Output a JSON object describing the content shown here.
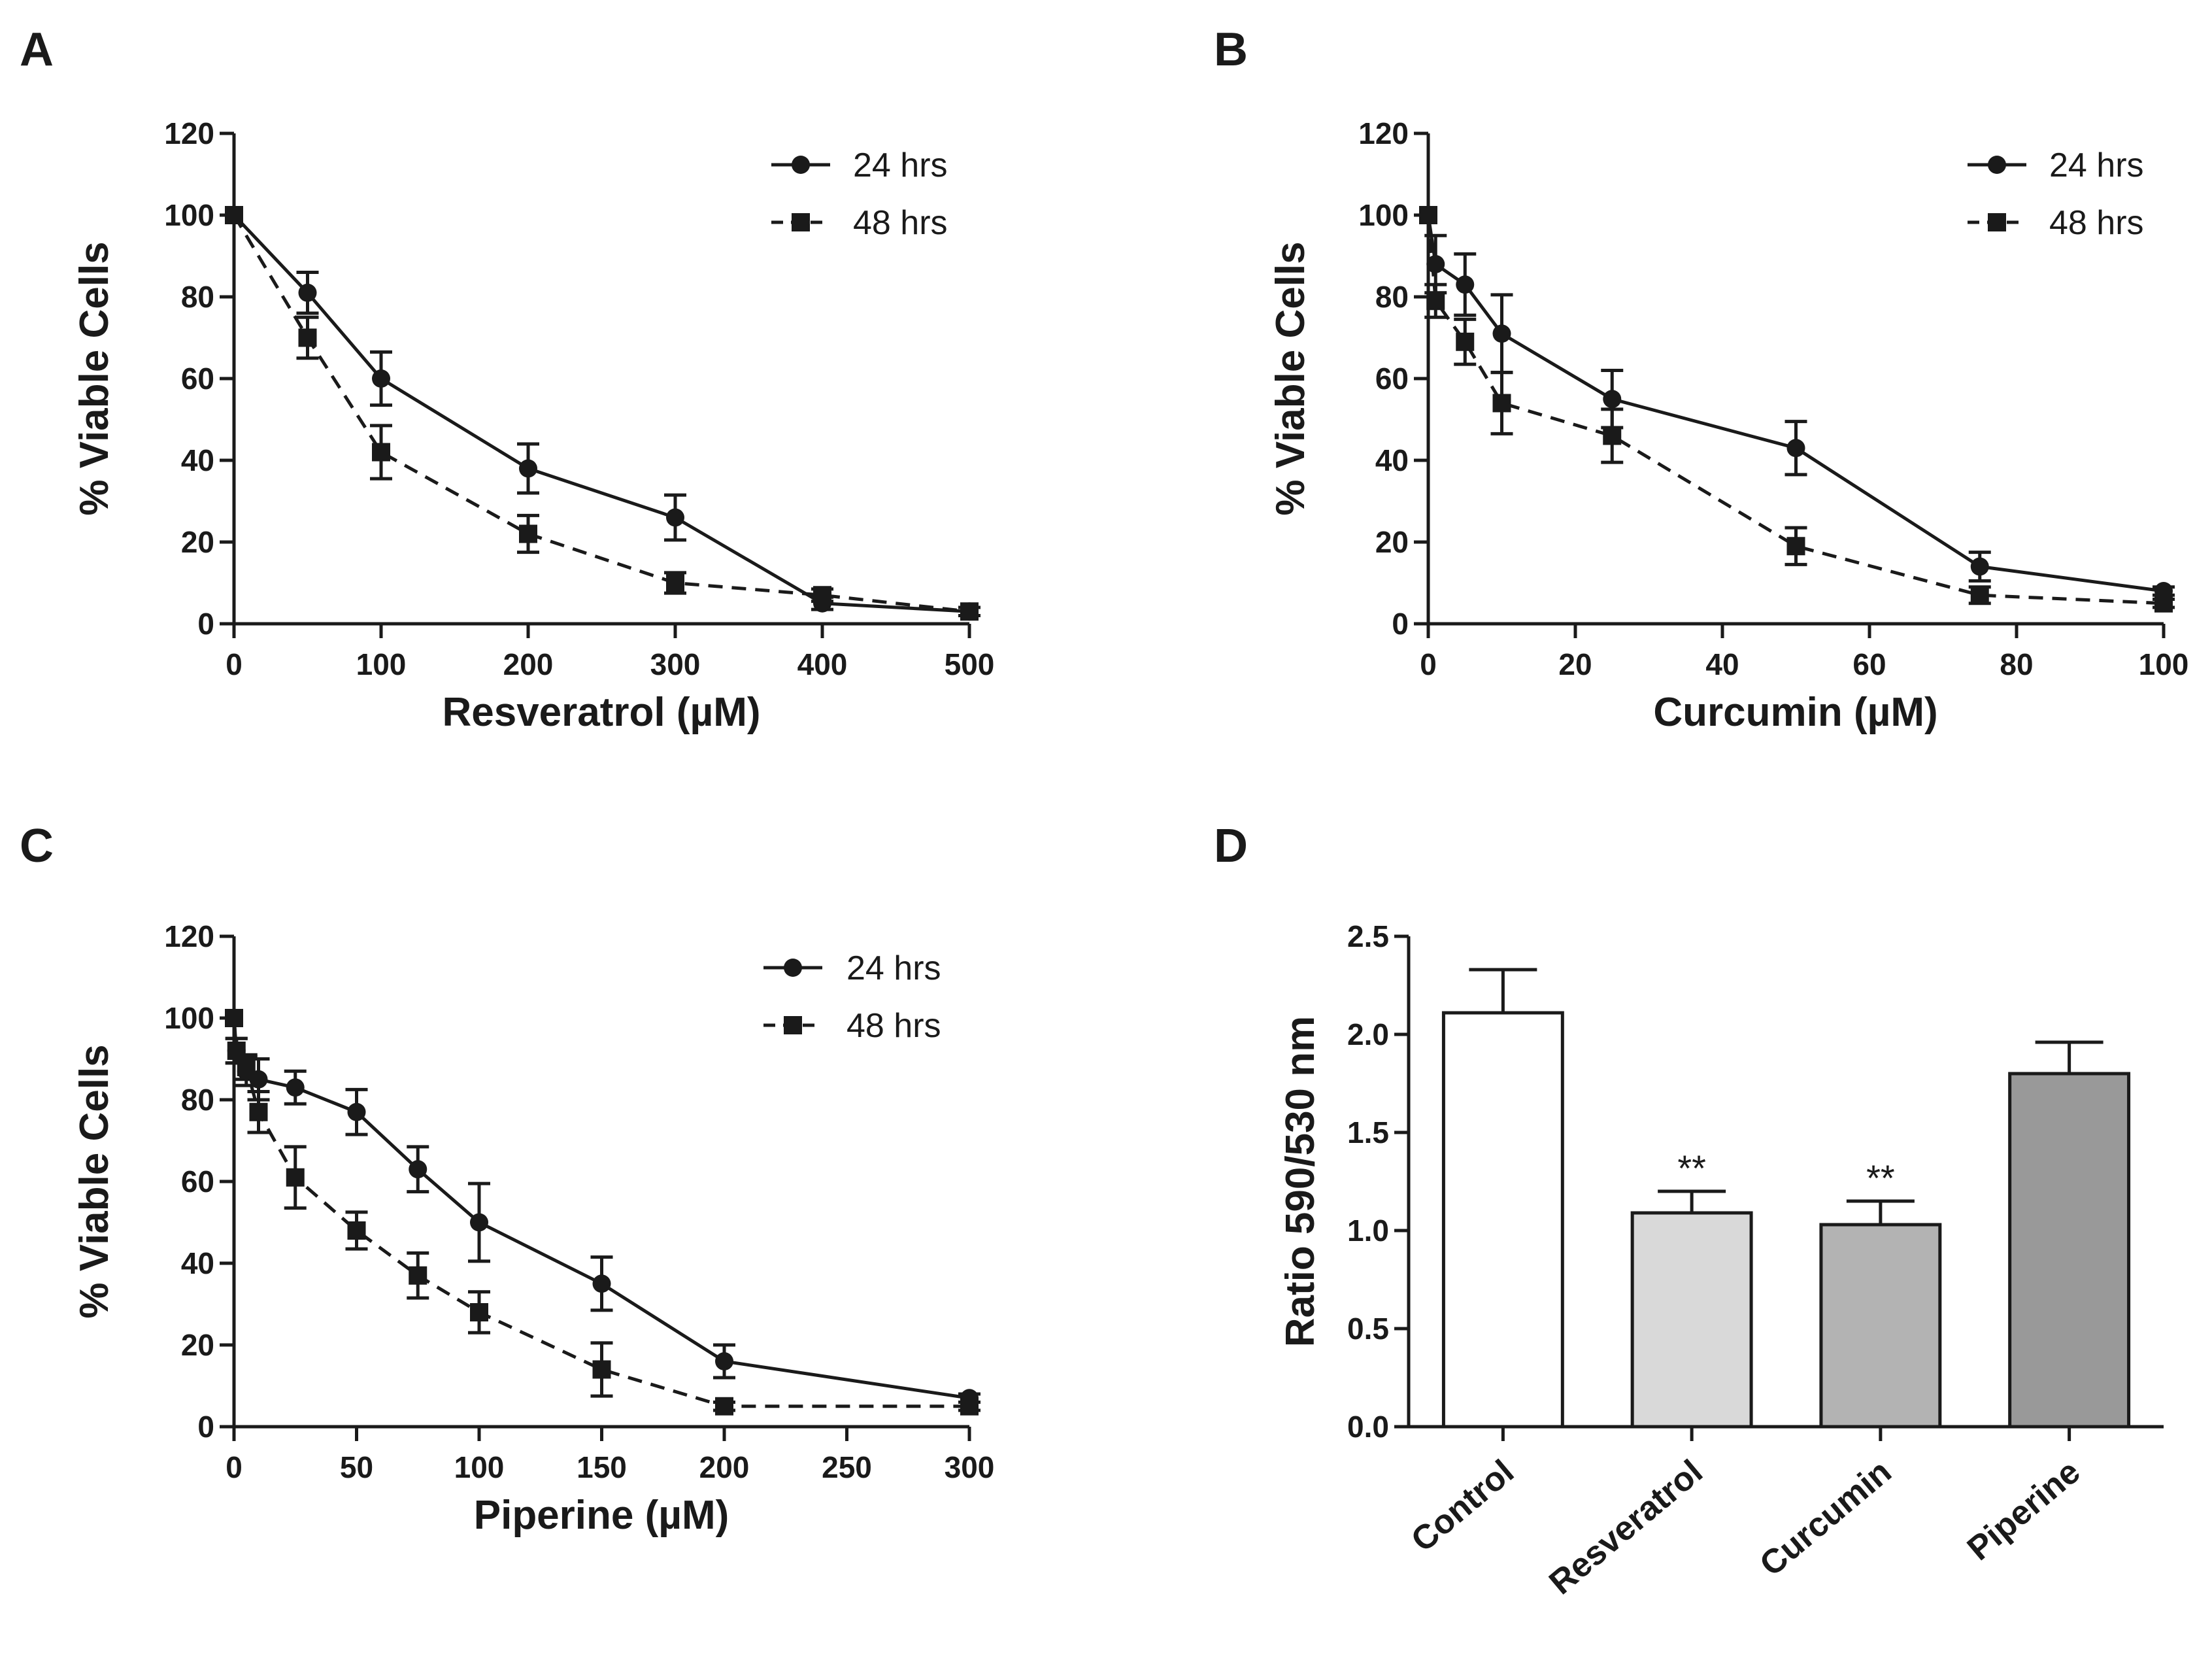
{
  "chart_data": [
    {
      "panel": "A",
      "type": "line",
      "xlabel": "Resveratrol (µM)",
      "ylabel": "% Viable Cells",
      "xlim": [
        0,
        500
      ],
      "ylim": [
        0,
        120
      ],
      "xticks": [
        0,
        100,
        200,
        300,
        400,
        500
      ],
      "yticks": [
        0,
        20,
        40,
        60,
        80,
        100,
        120
      ],
      "grid": false,
      "legend_position": "top-right",
      "series": [
        {
          "name": "24 hrs",
          "marker": "circle",
          "line": "solid",
          "x": [
            0,
            50,
            100,
            200,
            300,
            400,
            500
          ],
          "y": [
            100,
            81,
            60,
            38,
            26,
            5,
            3
          ],
          "error": [
            0,
            5,
            6.5,
            6,
            5.5,
            1.5,
            1
          ]
        },
        {
          "name": "48 hrs",
          "marker": "square",
          "line": "dashed",
          "x": [
            0,
            50,
            100,
            200,
            300,
            400,
            500
          ],
          "y": [
            100,
            70,
            42,
            22,
            10,
            7,
            3
          ],
          "error": [
            0,
            5,
            6.5,
            4.5,
            2.5,
            1.5,
            1
          ]
        }
      ]
    },
    {
      "panel": "B",
      "type": "line",
      "xlabel": "Curcumin (µM)",
      "ylabel": "% Viable Cells",
      "xlim": [
        0,
        100
      ],
      "ylim": [
        0,
        120
      ],
      "xticks": [
        0,
        20,
        40,
        60,
        80,
        100
      ],
      "yticks": [
        0,
        20,
        40,
        60,
        80,
        100,
        120
      ],
      "grid": false,
      "legend_position": "top-right",
      "series": [
        {
          "name": "24 hrs",
          "marker": "circle",
          "line": "solid",
          "x": [
            0,
            1,
            5,
            10,
            25,
            50,
            75,
            100
          ],
          "y": [
            100,
            88,
            83,
            71,
            55,
            43,
            14,
            8
          ],
          "error": [
            0,
            7,
            7.5,
            9.5,
            7,
            6.5,
            3.5,
            1
          ]
        },
        {
          "name": "48 hrs",
          "marker": "square",
          "line": "dashed",
          "x": [
            0,
            1,
            5,
            10,
            25,
            50,
            75,
            100
          ],
          "y": [
            100,
            79,
            69,
            54,
            46,
            19,
            7,
            5
          ],
          "error": [
            0,
            4,
            5.5,
            7.5,
            6.5,
            4.5,
            2,
            1
          ]
        }
      ]
    },
    {
      "panel": "C",
      "type": "line",
      "xlabel": "Piperine (µM)",
      "ylabel": "% Viable Cells",
      "xlim": [
        0,
        300
      ],
      "ylim": [
        0,
        120
      ],
      "xticks": [
        0,
        50,
        100,
        150,
        200,
        250,
        300
      ],
      "yticks": [
        0,
        20,
        40,
        60,
        80,
        100,
        120
      ],
      "grid": false,
      "legend_position": "top-right",
      "series": [
        {
          "name": "24 hrs",
          "marker": "circle",
          "line": "solid",
          "x": [
            0,
            1,
            5,
            10,
            25,
            50,
            75,
            100,
            150,
            200,
            300
          ],
          "y": [
            100,
            92,
            87,
            85,
            83,
            77,
            63,
            50,
            35,
            16,
            7
          ],
          "error": [
            0,
            3,
            3.5,
            5,
            4,
            5.5,
            5.5,
            9.5,
            6.5,
            4,
            1
          ]
        },
        {
          "name": "48 hrs",
          "marker": "square",
          "line": "dashed",
          "x": [
            0,
            1,
            5,
            10,
            25,
            50,
            75,
            100,
            150,
            200,
            300
          ],
          "y": [
            100,
            92,
            88,
            77,
            61,
            48,
            37,
            28,
            14,
            5,
            5
          ],
          "error": [
            0,
            3,
            3,
            5,
            7.5,
            4.5,
            5.5,
            5,
            6.5,
            1,
            1
          ]
        }
      ]
    },
    {
      "panel": "D",
      "type": "bar",
      "ylabel": "Ratio 590/530 nm",
      "ylim": [
        0,
        2.5
      ],
      "yticks": [
        0.0,
        0.5,
        1.0,
        1.5,
        2.0,
        2.5
      ],
      "grid": false,
      "categories": [
        "Control",
        "Resveratrol",
        "Curcumin",
        "Piperine"
      ],
      "values": [
        2.11,
        1.09,
        1.03,
        1.8
      ],
      "error": [
        0.22,
        0.11,
        0.12,
        0.16
      ],
      "colors": [
        "#ffffff",
        "#d9d9d9",
        "#b3b3b3",
        "#999999"
      ],
      "annotations": [
        "",
        "**",
        "**",
        ""
      ]
    }
  ]
}
